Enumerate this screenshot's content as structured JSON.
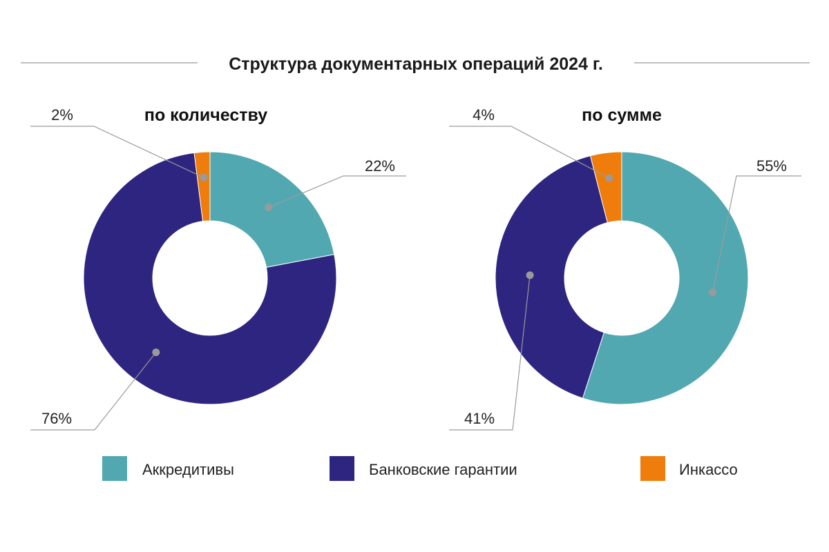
{
  "title": "Структура документарных операций 2024 г.",
  "colors": {
    "accreditives": "#52a8b1",
    "guarantees": "#2e2580",
    "collection": "#ef7d0b",
    "leader_line": "#9a9a9a",
    "title_rule": "#9a9a9a"
  },
  "legend": [
    {
      "label": "Аккредитивы",
      "color_key": "accreditives"
    },
    {
      "label": "Банковские гарантии",
      "color_key": "guarantees"
    },
    {
      "label": "Инкассо",
      "color_key": "collection"
    }
  ],
  "chart_data": [
    {
      "type": "pie",
      "variant": "donut",
      "title": "по количеству",
      "categories": [
        "Аккредитивы",
        "Банковские гарантии",
        "Инкассо"
      ],
      "values": [
        22,
        76,
        2
      ],
      "labels": [
        "22%",
        "76%",
        "2%"
      ],
      "start": "12 o'clock",
      "direction": "clockwise",
      "legend": "bottom"
    },
    {
      "type": "pie",
      "variant": "donut",
      "title": "по сумме",
      "categories": [
        "Аккредитивы",
        "Банковские гарантии",
        "Инкассо"
      ],
      "values": [
        55,
        41,
        4
      ],
      "labels": [
        "55%",
        "41%",
        "4%"
      ],
      "start": "12 o'clock",
      "direction": "clockwise",
      "legend": "bottom"
    }
  ]
}
